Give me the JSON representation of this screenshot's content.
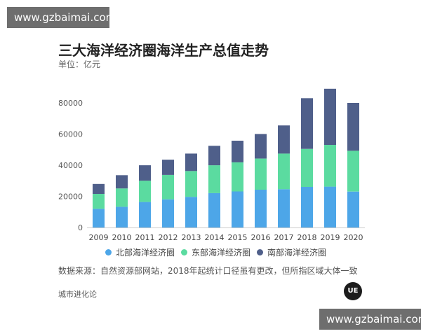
{
  "watermarks": {
    "top": "www.gzbaimai.com",
    "bottom": "www.gzbaimai.com"
  },
  "logo_text": "UE",
  "source_text": "数据来源：自然资源部网站，2018年起统计口径虽有更改，但所指区域大体一致",
  "footer_text": "城市进化论",
  "chart_data": {
    "type": "bar",
    "stacked": true,
    "title": "三大海洋经济圈海洋生产总值走势",
    "unit_label": "单位：亿元",
    "xlabel": "",
    "ylabel": "",
    "ylim": [
      0,
      90000
    ],
    "yticks": [
      0,
      20000,
      40000,
      60000,
      80000
    ],
    "grid": false,
    "legend_position": "bottom",
    "categories": [
      "2009",
      "2010",
      "2011",
      "2012",
      "2013",
      "2014",
      "2015",
      "2016",
      "2017",
      "2018",
      "2019",
      "2020"
    ],
    "series": [
      {
        "name": "北部海洋经济圈",
        "color": "#4da6e8",
        "values": [
          12000,
          13300,
          16400,
          18100,
          19700,
          22100,
          23200,
          24300,
          24600,
          26100,
          26300,
          23100
        ]
      },
      {
        "name": "东部海洋经济圈",
        "color": "#5bdba0",
        "values": [
          9600,
          11800,
          13700,
          15700,
          16600,
          17900,
          18700,
          20000,
          22900,
          24400,
          26800,
          26200
        ]
      },
      {
        "name": "南部海洋经济圈",
        "color": "#4f5f8a",
        "values": [
          6400,
          8500,
          9900,
          9800,
          11200,
          12500,
          13900,
          15800,
          18100,
          32600,
          36100,
          30800
        ]
      }
    ]
  }
}
